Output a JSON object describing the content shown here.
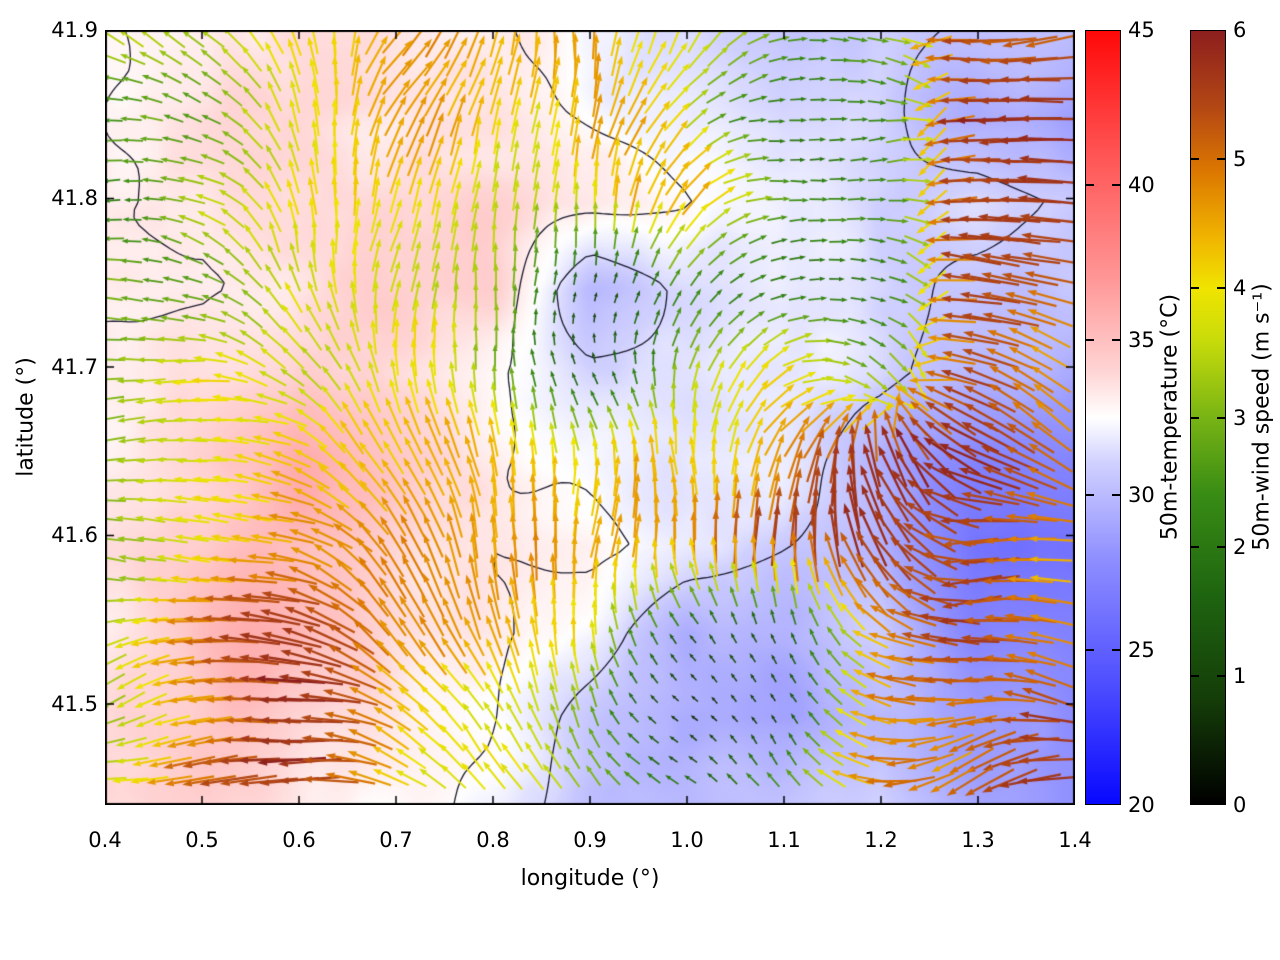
{
  "chart_data": {
    "type": "heatmap+quiver",
    "title": "",
    "xlabel": "longitude (°)",
    "ylabel": "latitude (°)",
    "x_range": [
      0.4,
      1.4
    ],
    "y_range": [
      41.44,
      41.9
    ],
    "x_ticks": [
      0.4,
      0.5,
      0.6,
      0.7,
      0.8,
      0.9,
      1.0,
      1.1,
      1.2,
      1.3,
      1.4
    ],
    "y_ticks": [
      41.5,
      41.6,
      41.7,
      41.8,
      41.9
    ],
    "grid": "off",
    "contour_color": "#1c1c30",
    "contour_levels": [
      31.2,
      32.7
    ],
    "temperature_colorbar": {
      "label": "50m-temperature (°C)",
      "range": [
        20,
        45
      ],
      "ticks": [
        20,
        25,
        30,
        35,
        40,
        45
      ],
      "stops": [
        {
          "v": 20,
          "c": "#0808ff"
        },
        {
          "v": 24,
          "c": "#5050ff"
        },
        {
          "v": 28,
          "c": "#9090ff"
        },
        {
          "v": 31,
          "c": "#d0d0ff"
        },
        {
          "v": 32.5,
          "c": "#ffffff"
        },
        {
          "v": 34,
          "c": "#ffd4d4"
        },
        {
          "v": 37,
          "c": "#ff9696"
        },
        {
          "v": 41,
          "c": "#ff5454"
        },
        {
          "v": 45,
          "c": "#ff0808"
        }
      ]
    },
    "wind_colorbar": {
      "label": "50m-wind speed (m s⁻¹)",
      "range": [
        0,
        6
      ],
      "ticks": [
        0,
        1,
        2,
        3,
        4,
        5,
        6
      ],
      "stops": [
        {
          "v": 0,
          "c": "#000000"
        },
        {
          "v": 0.8,
          "c": "#143c08"
        },
        {
          "v": 1.6,
          "c": "#1e6410"
        },
        {
          "v": 2.4,
          "c": "#388c14"
        },
        {
          "v": 3.0,
          "c": "#78b414"
        },
        {
          "v": 3.6,
          "c": "#c8dc0a"
        },
        {
          "v": 4.0,
          "c": "#f0e400"
        },
        {
          "v": 4.4,
          "c": "#f0b400"
        },
        {
          "v": 4.9,
          "c": "#dc7800"
        },
        {
          "v": 5.4,
          "c": "#b44814"
        },
        {
          "v": 6.0,
          "c": "#8c1e1e"
        }
      ]
    },
    "field_grid": {
      "lons": [
        0.4,
        0.5,
        0.6,
        0.7,
        0.8,
        0.9,
        1.0,
        1.1,
        1.2,
        1.3,
        1.4
      ],
      "lats_top_to_bottom": [
        41.9,
        41.85,
        41.8,
        41.75,
        41.7,
        41.65,
        41.6,
        41.55,
        41.5,
        41.45
      ],
      "temperature_c": [
        [
          33,
          33,
          33,
          33,
          32.5,
          32,
          32,
          31,
          31.5,
          30.5,
          30
        ],
        [
          33,
          33.5,
          33.5,
          33,
          33,
          32.5,
          32,
          31,
          31.5,
          29.5,
          28.5
        ],
        [
          33,
          33,
          33.5,
          34,
          33.5,
          33,
          32.5,
          31.5,
          31,
          31.5,
          30.5
        ],
        [
          33,
          33,
          33.5,
          34,
          34,
          30,
          31.5,
          32,
          31.5,
          30.5,
          30
        ],
        [
          33,
          33.5,
          34,
          33.5,
          33,
          31.5,
          31.5,
          32,
          31.5,
          30,
          29
        ],
        [
          33,
          34,
          35.5,
          34.5,
          33,
          32.5,
          32,
          32,
          30,
          27.5,
          27
        ],
        [
          33.5,
          34,
          35,
          34,
          33,
          33,
          32,
          31,
          30,
          26.5,
          26
        ],
        [
          33.5,
          35,
          35.5,
          34,
          33,
          32,
          29.5,
          30,
          31,
          27.5,
          27
        ],
        [
          34,
          34.5,
          34,
          33.5,
          32.5,
          30.5,
          29,
          29,
          30,
          29,
          28
        ],
        [
          34,
          34,
          33.5,
          33,
          32,
          30,
          29.5,
          30,
          31,
          29.5,
          28.5
        ]
      ],
      "wind_speed_ms": [
        [
          3,
          3.5,
          4.2,
          4.5,
          4.2,
          4.5,
          3.5,
          2.5,
          3,
          5.5,
          5
        ],
        [
          2.5,
          3,
          4.2,
          4.5,
          4.2,
          4.5,
          3.5,
          2.2,
          2.5,
          5.8,
          5.5
        ],
        [
          2.5,
          3,
          4,
          4.2,
          4,
          4.2,
          5,
          2.2,
          2,
          5.8,
          5.5
        ],
        [
          2.8,
          3.2,
          4,
          4.2,
          3.5,
          0.8,
          2.5,
          2.2,
          2.5,
          5.8,
          5
        ],
        [
          2.8,
          3.5,
          4,
          3.8,
          3,
          1.5,
          3.5,
          4.2,
          3,
          5.5,
          4.5
        ],
        [
          2.8,
          3.5,
          4.5,
          4.2,
          4,
          3.8,
          4.2,
          5,
          5.5,
          5.8,
          4.5
        ],
        [
          2.5,
          3.8,
          5,
          4.5,
          4.2,
          4.5,
          5,
          5.5,
          5.8,
          5.5,
          4.5
        ],
        [
          3,
          4.5,
          5.5,
          4.8,
          4.2,
          3.5,
          0.8,
          1.2,
          5,
          5.5,
          5
        ],
        [
          3.5,
          5,
          5.5,
          4.5,
          4,
          3,
          0.8,
          1,
          4.5,
          5,
          5.5
        ],
        [
          4,
          5.2,
          5.5,
          4.5,
          4,
          3.5,
          2.5,
          3,
          5,
          5.5,
          5.5
        ]
      ],
      "wind_direction_deg_math": [
        [
          160,
          140,
          100,
          70,
          90,
          100,
          60,
          10,
          0,
          185,
          190
        ],
        [
          170,
          150,
          90,
          60,
          80,
          90,
          45,
          5,
          355,
          185,
          185
        ],
        [
          175,
          160,
          100,
          70,
          85,
          95,
          60,
          10,
          350,
          180,
          175
        ],
        [
          180,
          170,
          120,
          80,
          90,
          90,
          70,
          20,
          340,
          175,
          165
        ],
        [
          180,
          175,
          140,
          95,
          85,
          110,
          85,
          35,
          330,
          165,
          155
        ],
        [
          182,
          178,
          155,
          110,
          90,
          95,
          95,
          70,
          120,
          170,
          145
        ],
        [
          185,
          182,
          165,
          120,
          95,
          85,
          100,
          95,
          130,
          180,
          155
        ],
        [
          190,
          185,
          170,
          130,
          105,
          90,
          130,
          110,
          150,
          190,
          165
        ],
        [
          192,
          188,
          175,
          140,
          115,
          100,
          150,
          130,
          160,
          200,
          175
        ],
        [
          195,
          190,
          180,
          150,
          125,
          110,
          160,
          140,
          165,
          205,
          185
        ]
      ]
    }
  }
}
